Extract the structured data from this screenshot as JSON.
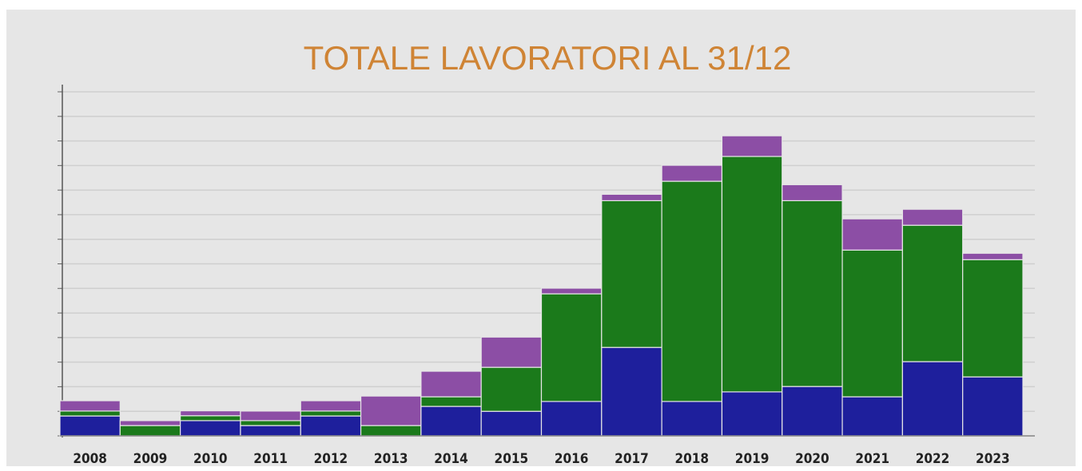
{
  "chart_data": {
    "type": "stacked-bar",
    "title": "TOTALE LAVORATORI AL 31/12",
    "categories": [
      "2008",
      "2009",
      "2010",
      "2011",
      "2012",
      "2013",
      "2014",
      "2015",
      "2016",
      "2017",
      "2018",
      "2019",
      "2020",
      "2021",
      "2022",
      "2023"
    ],
    "series": [
      {
        "color": "#1e1f9c",
        "values": [
          0.81,
          0,
          0.62,
          0.42,
          0.81,
          0,
          1.2,
          1.0,
          1.4,
          3.6,
          1.4,
          1.79,
          2.01,
          1.59,
          3.02,
          2.4
        ]
      },
      {
        "color": "#1b7a1b",
        "values": [
          0.2,
          0.42,
          0.2,
          0.2,
          0.2,
          0.42,
          0.39,
          1.79,
          4.38,
          5.97,
          8.96,
          9.58,
          7.56,
          5.97,
          5.55,
          4.77
        ]
      },
      {
        "color": "#8c4ea5",
        "values": [
          0.42,
          0.2,
          0.2,
          0.39,
          0.42,
          1.2,
          1.04,
          1.23,
          0.23,
          0.26,
          0.65,
          0.84,
          0.65,
          1.27,
          0.65,
          0.26
        ]
      }
    ],
    "ylim": [
      0,
      14
    ],
    "yticks": [
      0,
      1,
      2,
      3,
      4,
      5,
      6,
      7,
      8,
      9,
      10,
      11,
      12,
      13,
      14
    ],
    "grid": true
  }
}
